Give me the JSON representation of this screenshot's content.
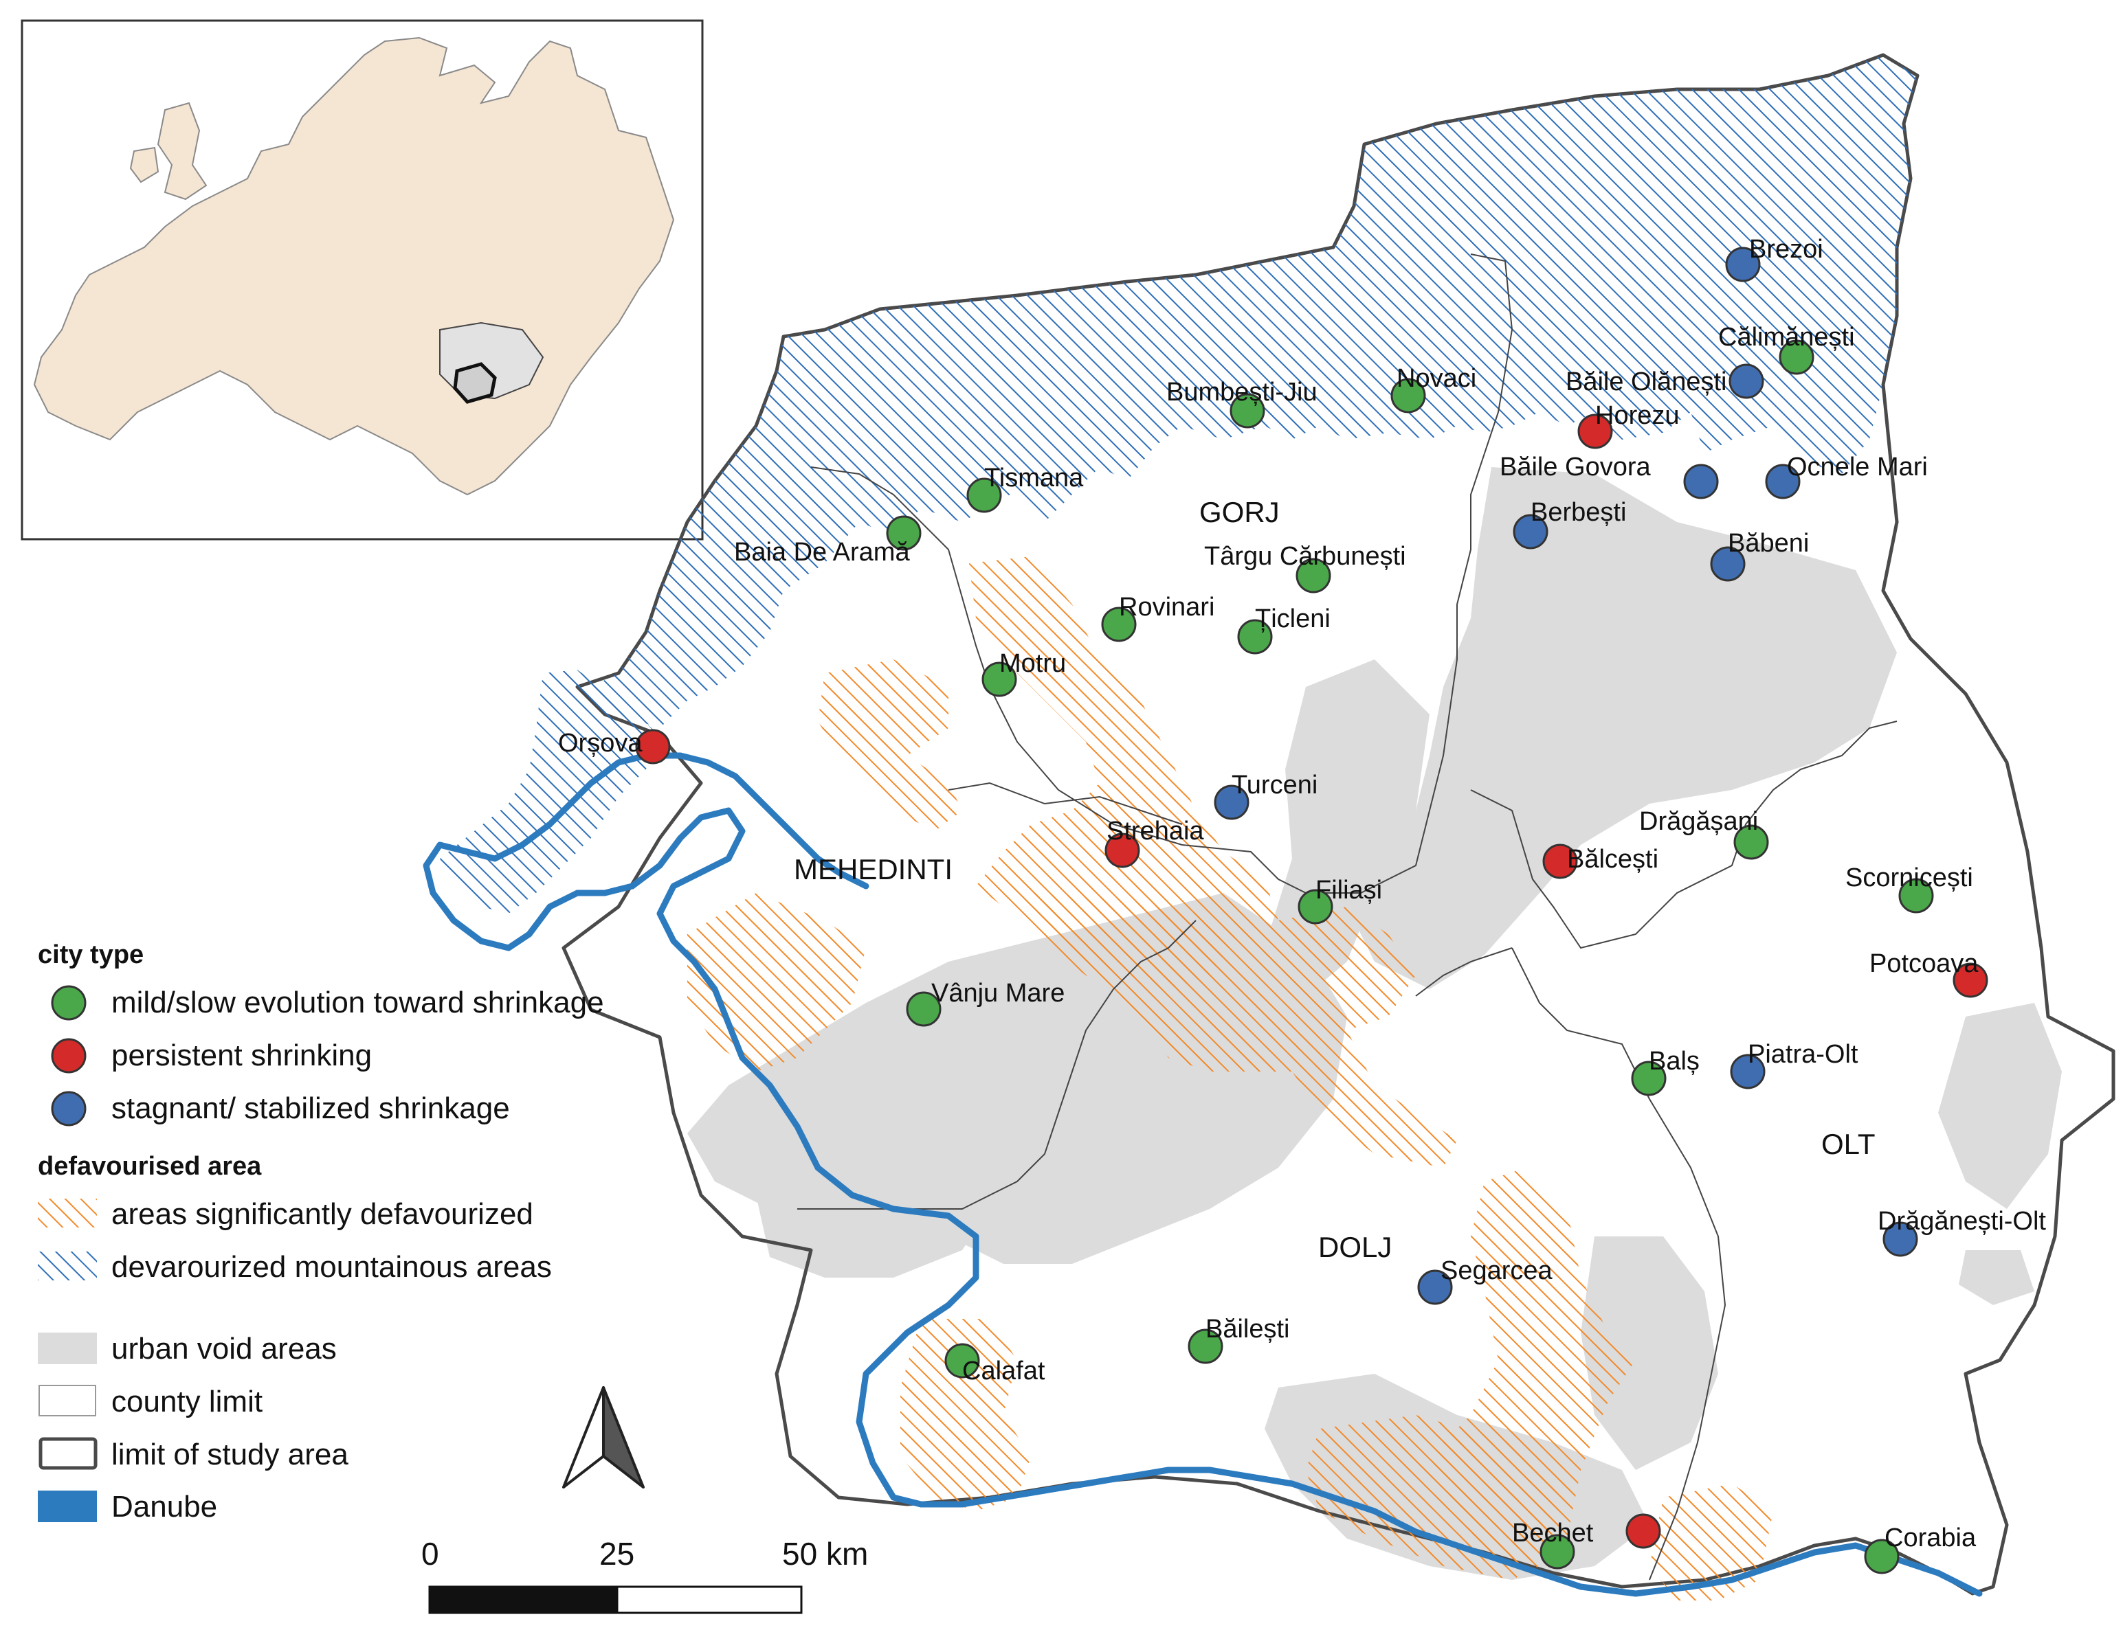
{
  "colors": {
    "mild": "#4aa84a",
    "persistent": "#d42a2a",
    "stagnant": "#3f6db0",
    "defav_orange": "#f28a2a",
    "defav_blue": "#2f6fb8",
    "urban_void": "#dcdcdc",
    "danube": "#2d7bbf",
    "study_limit": "#4a4a4a",
    "inset_land": "#f5e5d3"
  },
  "counties": [
    {
      "id": "gorj",
      "label": "GORJ"
    },
    {
      "id": "mehedinti",
      "label": "MEHEDINTI"
    },
    {
      "id": "dolj",
      "label": "DOLJ"
    },
    {
      "id": "olt",
      "label": "OLT"
    }
  ],
  "cities": [
    {
      "name": "Brezoi",
      "type": "stagnant"
    },
    {
      "name": "Călimănești",
      "type": "mild"
    },
    {
      "name": "Băile Olănești",
      "type": "stagnant"
    },
    {
      "name": "Horezu",
      "type": "persistent"
    },
    {
      "name": "Băile Govora",
      "type": "stagnant"
    },
    {
      "name": "Ocnele Mari",
      "type": "stagnant"
    },
    {
      "name": "Berbești",
      "type": "stagnant"
    },
    {
      "name": "Băbeni",
      "type": "stagnant"
    },
    {
      "name": "Novaci",
      "type": "mild"
    },
    {
      "name": "Bumbești-Jiu",
      "type": "mild"
    },
    {
      "name": "Tismana",
      "type": "mild"
    },
    {
      "name": "Baia De Aramă",
      "type": "mild"
    },
    {
      "name": "Târgu Cărbunești",
      "type": "mild"
    },
    {
      "name": "Rovinari",
      "type": "mild"
    },
    {
      "name": "Țicleni",
      "type": "mild"
    },
    {
      "name": "Motru",
      "type": "mild"
    },
    {
      "name": "Orșova",
      "type": "persistent"
    },
    {
      "name": "Turceni",
      "type": "stagnant"
    },
    {
      "name": "Strehaia",
      "type": "persistent"
    },
    {
      "name": "Drăgășani",
      "type": "mild"
    },
    {
      "name": "Bălcești",
      "type": "persistent"
    },
    {
      "name": "Scornicești",
      "type": "mild"
    },
    {
      "name": "Filiași",
      "type": "mild"
    },
    {
      "name": "Potcoava",
      "type": "persistent"
    },
    {
      "name": "Vânju Mare",
      "type": "mild"
    },
    {
      "name": "Balș",
      "type": "mild"
    },
    {
      "name": "Piatra-Olt",
      "type": "stagnant"
    },
    {
      "name": "Drăgănești-Olt",
      "type": "stagnant"
    },
    {
      "name": "Segarcea",
      "type": "stagnant"
    },
    {
      "name": "Băilești",
      "type": "mild"
    },
    {
      "name": "Calafat",
      "type": "mild"
    },
    {
      "name": "Bechet",
      "type": "mild"
    },
    {
      "name": "Corabia",
      "type": "mild"
    },
    {
      "name": "",
      "type": "persistent"
    }
  ],
  "legend": {
    "city_type_heading": "city type",
    "mild_label": "mild/slow evolution toward shrinkage",
    "persistent_label": "persistent shrinking",
    "stagnant_label": "stagnant/ stabilized shrinkage",
    "defav_heading": "defavourised area",
    "defav_orange_label": "areas significantly defavourized",
    "defav_blue_label": "devarourized mountainous areas",
    "urban_label": "urban void areas",
    "county_label": "county limit",
    "study_label": "limit of study area",
    "danube_label": "Danube"
  },
  "scale_bar": {
    "tick_0": "0",
    "tick_1": "25",
    "tick_2": "50 km"
  }
}
